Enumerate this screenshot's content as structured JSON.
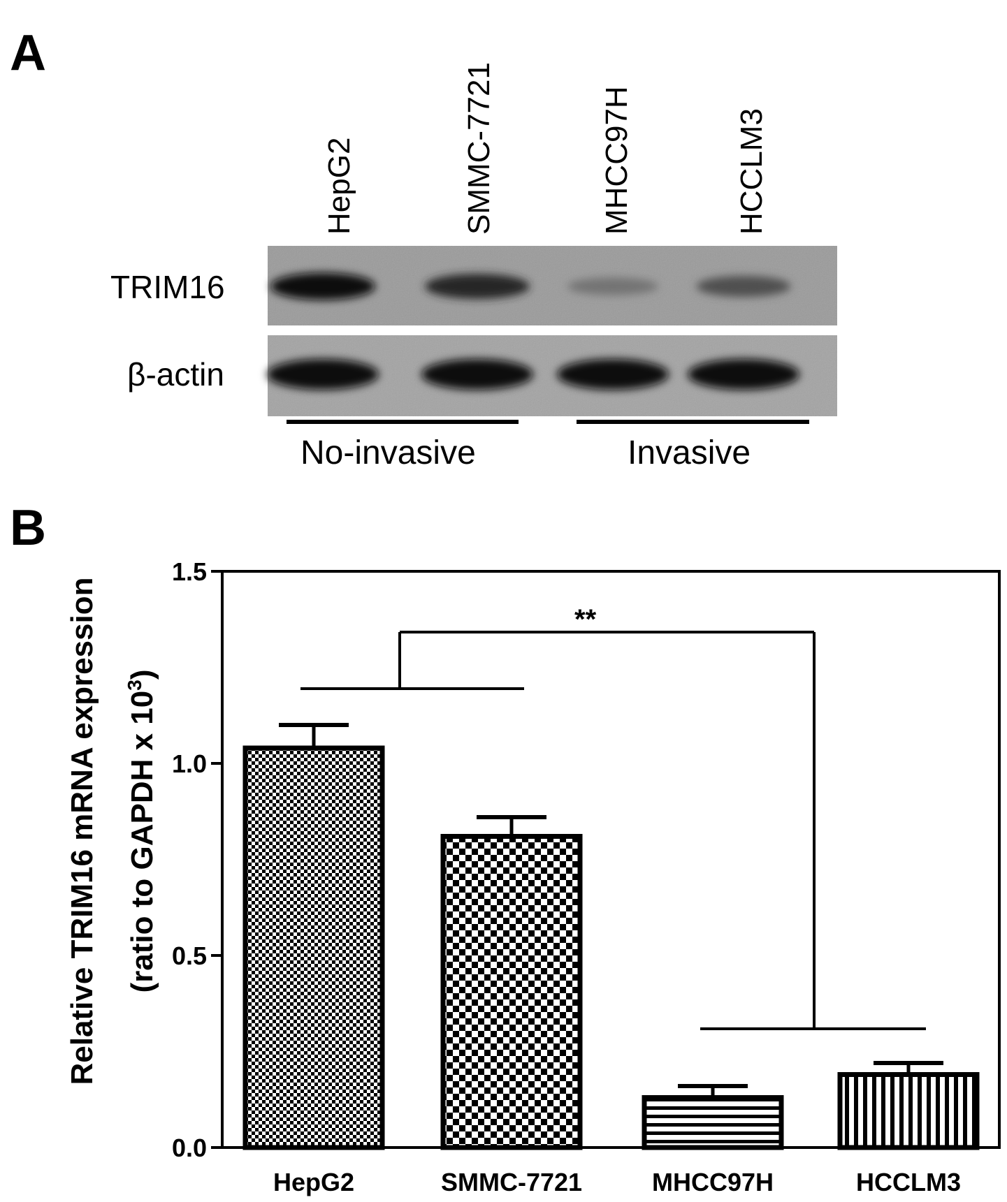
{
  "panel_a": {
    "letter": "A",
    "lanes": [
      "HepG2",
      "SMMC-7721",
      "MHCC97H",
      "HCCLM3"
    ],
    "bands": [
      {
        "label": "TRIM16",
        "intensity": [
          0.95,
          0.8,
          0.25,
          0.5
        ]
      },
      {
        "label": "β-actin",
        "intensity": [
          1.0,
          1.0,
          1.0,
          1.0
        ]
      }
    ],
    "groups": [
      "No-invasive",
      "Invasive"
    ]
  },
  "panel_b": {
    "letter": "B",
    "significance": "**"
  },
  "chart_data": {
    "type": "bar",
    "categories": [
      "HepG2",
      "SMMC-7721",
      "MHCC97H",
      "HCCLM3"
    ],
    "series": [
      {
        "values": [
          1.04,
          0.81,
          0.13,
          0.19
        ],
        "errors": [
          0.06,
          0.05,
          0.03,
          0.03
        ]
      }
    ],
    "ylabel_line1": "Relative TRIM16 mRNA expression",
    "ylabel_line2_prefix": "(ratio to  GAPDH x 10",
    "ylabel_sup": "3",
    "ylabel_line2_suffix": ")",
    "ylim": [
      0,
      1.5
    ],
    "yticks": [
      "0.0",
      "0.5",
      "1.0",
      "1.5"
    ],
    "patterns": [
      "fine-checker",
      "checker",
      "horizontal-stripes",
      "vertical-stripes"
    ],
    "annotation": "**"
  }
}
